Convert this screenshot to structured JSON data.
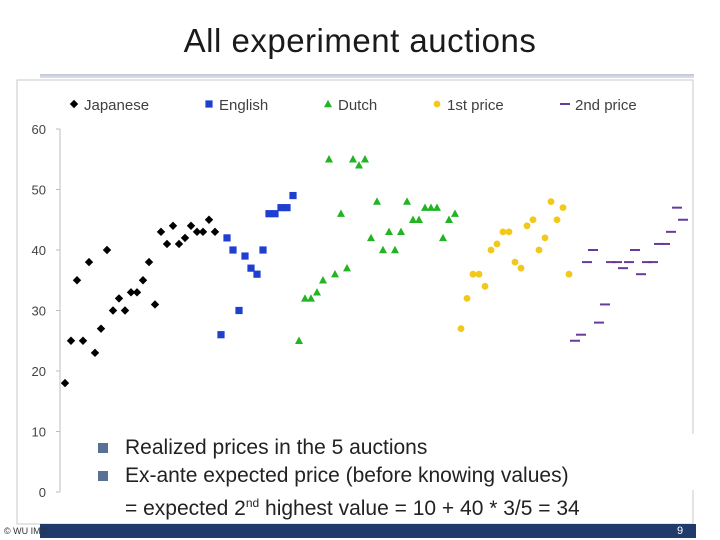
{
  "slide": {
    "title": "All experiment auctions",
    "bullets": [
      "Realized prices in the 5 auctions",
      "Ex-ante expected price (before knowing values)"
    ],
    "sub_line_pre": "= expected 2",
    "sub_line_sup": "nd",
    "sub_line_post": " highest value = 10 + 40 * 3/5 = 34",
    "footer_left": "© WU IMS",
    "page_number": "9"
  },
  "colors": {
    "japanese": "#000000",
    "english": "#1f3fd1",
    "dutch": "#22b422",
    "first_price": "#f2c81a",
    "second_price": "#6a3a9a",
    "footer_bar": "#1f3a6b",
    "bullet": "#5a7196"
  },
  "chart_data": {
    "type": "scatter",
    "title": "",
    "xlabel": "",
    "ylabel": "",
    "ylim": [
      0,
      60
    ],
    "yticks": [
      0,
      10,
      20,
      30,
      40,
      50,
      60
    ],
    "grid": false,
    "legend_position": "top",
    "x_axis_visible": false,
    "series": [
      {
        "name": "Japanese",
        "marker": "diamond",
        "points": [
          [
            1,
            18
          ],
          [
            2,
            25
          ],
          [
            3,
            35
          ],
          [
            4,
            25
          ],
          [
            5,
            38
          ],
          [
            6,
            23
          ],
          [
            7,
            27
          ],
          [
            8,
            40
          ],
          [
            9,
            30
          ],
          [
            10,
            32
          ],
          [
            11,
            30
          ],
          [
            12,
            33
          ],
          [
            13,
            33
          ],
          [
            14,
            35
          ],
          [
            15,
            38
          ],
          [
            16,
            31
          ],
          [
            17,
            43
          ],
          [
            18,
            41
          ],
          [
            19,
            44
          ],
          [
            20,
            41
          ],
          [
            21,
            42
          ],
          [
            22,
            44
          ],
          [
            23,
            43
          ],
          [
            24,
            43
          ],
          [
            25,
            45
          ],
          [
            26,
            43
          ]
        ]
      },
      {
        "name": "English",
        "marker": "square",
        "points": [
          [
            27,
            26
          ],
          [
            28,
            42
          ],
          [
            29,
            40
          ],
          [
            30,
            30
          ],
          [
            31,
            39
          ],
          [
            32,
            37
          ],
          [
            33,
            36
          ],
          [
            34,
            40
          ],
          [
            35,
            46
          ],
          [
            36,
            46
          ],
          [
            37,
            47
          ],
          [
            38,
            47
          ],
          [
            39,
            49
          ]
        ]
      },
      {
        "name": "Dutch",
        "marker": "triangle",
        "points": [
          [
            40,
            25
          ],
          [
            41,
            32
          ],
          [
            42,
            32
          ],
          [
            43,
            33
          ],
          [
            44,
            35
          ],
          [
            45,
            55
          ],
          [
            46,
            36
          ],
          [
            47,
            46
          ],
          [
            48,
            37
          ],
          [
            49,
            55
          ],
          [
            50,
            54
          ],
          [
            51,
            55
          ],
          [
            52,
            42
          ],
          [
            53,
            48
          ],
          [
            54,
            40
          ],
          [
            55,
            43
          ],
          [
            56,
            40
          ],
          [
            57,
            43
          ],
          [
            58,
            48
          ],
          [
            59,
            45
          ],
          [
            60,
            45
          ],
          [
            61,
            47
          ],
          [
            62,
            47
          ],
          [
            63,
            47
          ],
          [
            64,
            42
          ],
          [
            65,
            45
          ],
          [
            66,
            46
          ]
        ]
      },
      {
        "name": "1st price",
        "marker": "circle",
        "points": [
          [
            67,
            27
          ],
          [
            68,
            32
          ],
          [
            69,
            36
          ],
          [
            70,
            36
          ],
          [
            71,
            34
          ],
          [
            72,
            40
          ],
          [
            73,
            41
          ],
          [
            74,
            43
          ],
          [
            75,
            43
          ],
          [
            76,
            38
          ],
          [
            77,
            37
          ],
          [
            78,
            44
          ],
          [
            79,
            45
          ],
          [
            80,
            40
          ],
          [
            81,
            42
          ],
          [
            82,
            48
          ],
          [
            83,
            45
          ],
          [
            84,
            47
          ],
          [
            85,
            36
          ]
        ]
      },
      {
        "name": "2nd price",
        "marker": "dash",
        "points": [
          [
            86,
            25
          ],
          [
            87,
            26
          ],
          [
            88,
            38
          ],
          [
            89,
            40
          ],
          [
            90,
            28
          ],
          [
            91,
            31
          ],
          [
            92,
            38
          ],
          [
            93,
            38
          ],
          [
            94,
            37
          ],
          [
            95,
            38
          ],
          [
            96,
            40
          ],
          [
            97,
            36
          ],
          [
            98,
            38
          ],
          [
            99,
            38
          ],
          [
            100,
            41
          ],
          [
            101,
            41
          ],
          [
            102,
            43
          ],
          [
            103,
            47
          ],
          [
            104,
            45
          ]
        ]
      }
    ]
  }
}
